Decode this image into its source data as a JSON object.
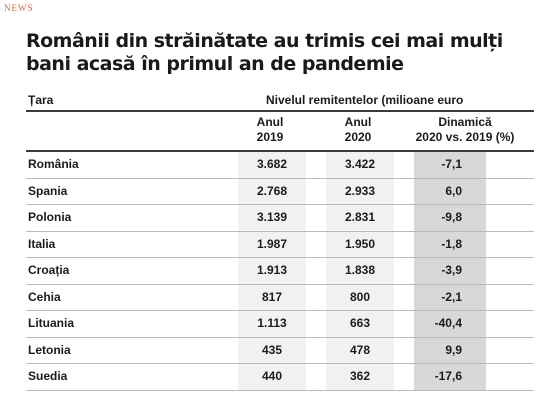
{
  "source_tag": "NEWS",
  "title_line1": "Românii din străinătate au trimis cei mai mulți",
  "title_line2": "bani acasă în primul an de pandemie",
  "chart_data": {
    "type": "table",
    "title": "Românii din străinătate au trimis cei mai mulți bani acasă în primul an de pandemie",
    "country_header": "Țara",
    "group_header": "Nivelul remitentelor (milioane euro",
    "columns": [
      {
        "line1": "Anul",
        "line2": "2019"
      },
      {
        "line1": "Anul",
        "line2": "2020"
      },
      {
        "line1": "Dinamică",
        "line2": "2020 vs. 2019 (%)"
      }
    ],
    "rows": [
      {
        "country": "România",
        "y2019": "3.682",
        "y2020": "3.422",
        "dynamic": "-7,1"
      },
      {
        "country": "Spania",
        "y2019": "2.768",
        "y2020": "2.933",
        "dynamic": "6,0"
      },
      {
        "country": "Polonia",
        "y2019": "3.139",
        "y2020": "2.831",
        "dynamic": "-9,8"
      },
      {
        "country": "Italia",
        "y2019": "1.987",
        "y2020": "1.950",
        "dynamic": "-1,8"
      },
      {
        "country": "Croația",
        "y2019": "1.913",
        "y2020": "1.838",
        "dynamic": "-3,9"
      },
      {
        "country": "Cehia",
        "y2019": "817",
        "y2020": "800",
        "dynamic": "-2,1"
      },
      {
        "country": "Lituania",
        "y2019": "1.113",
        "y2020": "663",
        "dynamic": "-40,4"
      },
      {
        "country": "Letonia",
        "y2019": "435",
        "y2020": "478",
        "dynamic": "9,9"
      },
      {
        "country": "Suedia",
        "y2019": "440",
        "y2020": "362",
        "dynamic": "-17,6"
      }
    ]
  }
}
